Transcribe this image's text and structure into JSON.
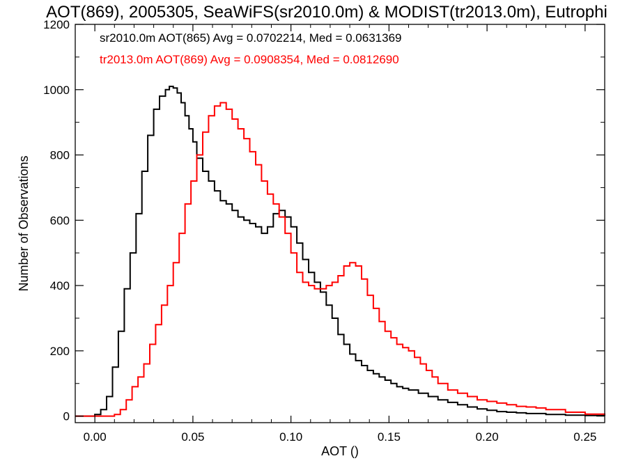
{
  "chart_data": {
    "type": "line",
    "title": "AOT(869), 2005305, SeaWiFS(sr2010.0m) & MODIST(tr2013.0m), Eutrophi",
    "xlabel": "AOT ()",
    "ylabel": "Number of Observations",
    "xlim": [
      -0.01,
      0.26
    ],
    "ylim": [
      -20,
      1200
    ],
    "x_ticks": [
      0.0,
      0.05,
      0.1,
      0.15,
      0.2,
      0.25
    ],
    "x_tick_labels": [
      "0.00",
      "0.05",
      "0.10",
      "0.15",
      "0.20",
      "0.25"
    ],
    "y_ticks": [
      0,
      200,
      400,
      600,
      800,
      1000,
      1200
    ],
    "y_tick_labels": [
      "0",
      "200",
      "400",
      "600",
      "800",
      "1000",
      "1200"
    ],
    "legend_placement": "top-left",
    "grid": false,
    "step": "histogram",
    "series": [
      {
        "name": "sr2010.0m AOT(865) Avg = 0.0702214, Med = 0.0631369",
        "color": "#000000",
        "x": [
          -0.01,
          -0.005,
          0.0,
          0.003,
          0.006,
          0.009,
          0.012,
          0.015,
          0.018,
          0.021,
          0.024,
          0.027,
          0.03,
          0.033,
          0.036,
          0.038,
          0.04,
          0.042,
          0.044,
          0.046,
          0.048,
          0.05,
          0.052,
          0.055,
          0.058,
          0.061,
          0.064,
          0.067,
          0.07,
          0.073,
          0.076,
          0.079,
          0.082,
          0.085,
          0.088,
          0.091,
          0.094,
          0.097,
          0.1,
          0.103,
          0.106,
          0.109,
          0.112,
          0.115,
          0.118,
          0.121,
          0.124,
          0.127,
          0.13,
          0.133,
          0.136,
          0.139,
          0.142,
          0.145,
          0.148,
          0.151,
          0.154,
          0.157,
          0.16,
          0.165,
          0.17,
          0.175,
          0.18,
          0.185,
          0.19,
          0.195,
          0.2,
          0.205,
          0.21,
          0.215,
          0.22,
          0.23,
          0.24,
          0.25,
          0.26
        ],
        "y": [
          0,
          0,
          5,
          20,
          60,
          150,
          260,
          390,
          500,
          620,
          750,
          860,
          940,
          980,
          1000,
          1010,
          1005,
          990,
          960,
          920,
          880,
          840,
          790,
          750,
          720,
          690,
          660,
          650,
          630,
          610,
          600,
          590,
          580,
          560,
          580,
          620,
          630,
          610,
          580,
          530,
          480,
          440,
          410,
          380,
          340,
          300,
          250,
          220,
          190,
          170,
          155,
          140,
          130,
          120,
          110,
          100,
          90,
          85,
          80,
          70,
          60,
          50,
          42,
          35,
          28,
          22,
          18,
          14,
          12,
          10,
          8,
          5,
          3,
          2,
          1
        ]
      },
      {
        "name": "tr2013.0m AOT(869) Avg = 0.0908354, Med = 0.0812690",
        "color": "#ff0000",
        "x": [
          -0.01,
          -0.005,
          0.0,
          0.005,
          0.01,
          0.013,
          0.016,
          0.019,
          0.022,
          0.025,
          0.028,
          0.031,
          0.034,
          0.037,
          0.04,
          0.043,
          0.046,
          0.049,
          0.052,
          0.055,
          0.058,
          0.061,
          0.064,
          0.067,
          0.07,
          0.073,
          0.076,
          0.079,
          0.082,
          0.085,
          0.088,
          0.091,
          0.094,
          0.097,
          0.1,
          0.103,
          0.106,
          0.109,
          0.112,
          0.115,
          0.118,
          0.121,
          0.124,
          0.127,
          0.13,
          0.133,
          0.136,
          0.139,
          0.142,
          0.145,
          0.148,
          0.151,
          0.154,
          0.157,
          0.16,
          0.163,
          0.166,
          0.169,
          0.172,
          0.175,
          0.18,
          0.185,
          0.19,
          0.195,
          0.2,
          0.205,
          0.21,
          0.215,
          0.22,
          0.225,
          0.23,
          0.24,
          0.25,
          0.26
        ],
        "y": [
          0,
          0,
          0,
          0,
          5,
          20,
          50,
          90,
          120,
          160,
          220,
          280,
          340,
          400,
          470,
          560,
          650,
          720,
          800,
          870,
          920,
          950,
          960,
          940,
          910,
          880,
          850,
          810,
          770,
          720,
          680,
          650,
          610,
          560,
          500,
          440,
          410,
          400,
          390,
          390,
          400,
          410,
          430,
          460,
          470,
          460,
          420,
          370,
          330,
          290,
          260,
          240,
          220,
          210,
          200,
          180,
          160,
          140,
          120,
          100,
          80,
          70,
          60,
          50,
          45,
          40,
          35,
          30,
          28,
          25,
          20,
          12,
          6,
          3
        ]
      }
    ]
  }
}
